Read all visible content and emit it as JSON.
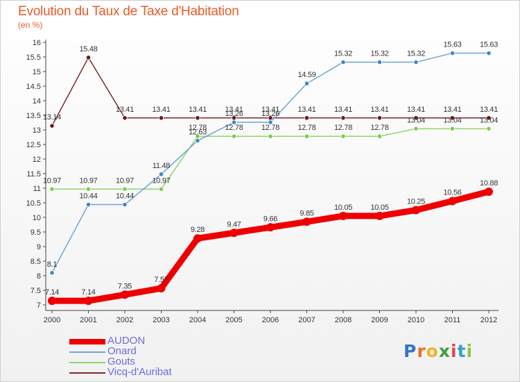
{
  "header": {
    "title": "Evolution du Taux de Taxe d'Habitation",
    "subtitle": "(en %)"
  },
  "logo": {
    "text": "Proxiti"
  },
  "chart_data": {
    "type": "line",
    "title": "Evolution du Taux de Taxe d'Habitation",
    "ylabel": "(en %)",
    "xlabel": "",
    "categories": [
      "2000",
      "2001",
      "2002",
      "2003",
      "2004",
      "2005",
      "2006",
      "2007",
      "2008",
      "2009",
      "2010",
      "2011",
      "2012"
    ],
    "ylim": [
      7,
      16
    ],
    "yticks": [
      "7",
      "7.5",
      "8",
      "8.5",
      "9",
      "9.5",
      "10",
      "10.5",
      "11",
      "11.5",
      "12",
      "12.5",
      "13",
      "13.5",
      "14",
      "14.5",
      "15",
      "15.5",
      "16"
    ],
    "grid": false,
    "legend_position": "bottom-left",
    "series": [
      {
        "name": "AUDON",
        "color": "#ee0000",
        "width": 9,
        "values": [
          7.14,
          7.14,
          7.35,
          7.57,
          9.28,
          9.47,
          9.66,
          9.85,
          10.05,
          10.05,
          10.25,
          10.56,
          10.88
        ],
        "labels": [
          "7.14",
          "7.14",
          "7.35",
          "7.57",
          "9.28",
          "9.47",
          "9.66",
          "9.85",
          "10.05",
          "10.05",
          "10.25",
          "10.56",
          "10.88"
        ]
      },
      {
        "name": "Onard",
        "color": "#6fa3d6",
        "width": 1.5,
        "values": [
          8.1,
          10.44,
          10.44,
          11.48,
          12.63,
          13.26,
          13.26,
          14.59,
          15.32,
          15.32,
          15.32,
          15.63,
          15.63
        ],
        "labels": [
          "8.1",
          "10.44",
          "10.44",
          "11.48",
          "12.63",
          "13.26",
          "13.26",
          "14.59",
          "15.32",
          "15.32",
          "15.32",
          "15.63",
          "15.63"
        ]
      },
      {
        "name": "Gouts",
        "color": "#8fd46a",
        "width": 1.5,
        "values": [
          10.97,
          10.97,
          10.97,
          10.97,
          12.78,
          12.78,
          12.78,
          12.78,
          12.78,
          12.78,
          13.04,
          13.04,
          13.04
        ],
        "labels": [
          "10.97",
          "10.97",
          "10.97",
          "10.97",
          "12.78",
          "12.78",
          "12.78",
          "12.78",
          "12.78",
          "12.78",
          "13.04",
          "13.04",
          "13.04"
        ]
      },
      {
        "name": "Vicq-d'Auribat",
        "color": "#7a2a2a",
        "width": 1.5,
        "values": [
          13.14,
          15.48,
          13.41,
          13.41,
          13.41,
          13.41,
          13.41,
          13.41,
          13.41,
          13.41,
          13.41,
          13.41,
          13.41
        ],
        "labels": [
          "13.14",
          "15.48",
          "13.41",
          "13.41",
          "13.41",
          "13.41",
          "13.41",
          "13.41",
          "13.41",
          "13.41",
          "13.41",
          "13.41",
          "13.41"
        ]
      }
    ]
  }
}
